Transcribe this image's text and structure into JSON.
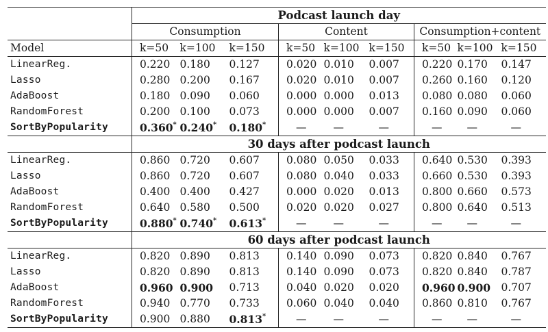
{
  "headers": {
    "model_label": "Model",
    "groups": [
      "Consumption",
      "Content",
      "Consumption+content"
    ],
    "k_labels": [
      "k=50",
      "k=100",
      "k=150"
    ]
  },
  "sections": [
    {
      "title": "Podcast launch day",
      "rows": [
        {
          "model": "LinearReg.",
          "values": [
            "0.220",
            "0.180",
            "0.127",
            "0.020",
            "0.010",
            "0.007",
            "0.220",
            "0.170",
            "0.147"
          ]
        },
        {
          "model": "Lasso",
          "values": [
            "0.280",
            "0.200",
            "0.167",
            "0.020",
            "0.010",
            "0.007",
            "0.260",
            "0.160",
            "0.120"
          ]
        },
        {
          "model": "AdaBoost",
          "values": [
            "0.180",
            "0.090",
            "0.060",
            "0.000",
            "0.000",
            "0.013",
            "0.080",
            "0.080",
            "0.060"
          ]
        },
        {
          "model": "RandomForest",
          "values": [
            "0.200",
            "0.100",
            "0.073",
            "0.000",
            "0.000",
            "0.007",
            "0.160",
            "0.090",
            "0.060"
          ]
        },
        {
          "model": "SortByPopularity",
          "values": [
            "0.360*",
            "0.240*",
            "0.180*",
            "—",
            "—",
            "—",
            "—",
            "—",
            "—"
          ]
        }
      ]
    },
    {
      "title": "30 days after podcast launch",
      "rows": [
        {
          "model": "LinearReg.",
          "values": [
            "0.860",
            "0.720",
            "0.607",
            "0.080",
            "0.050",
            "0.033",
            "0.640",
            "0.530",
            "0.393"
          ]
        },
        {
          "model": "Lasso",
          "values": [
            "0.860",
            "0.720",
            "0.607",
            "0.080",
            "0.040",
            "0.033",
            "0.660",
            "0.530",
            "0.393"
          ]
        },
        {
          "model": "AdaBoost",
          "values": [
            "0.400",
            "0.400",
            "0.427",
            "0.000",
            "0.020",
            "0.013",
            "0.800",
            "0.660",
            "0.573"
          ]
        },
        {
          "model": "RandomForest",
          "values": [
            "0.640",
            "0.580",
            "0.500",
            "0.020",
            "0.020",
            "0.027",
            "0.800",
            "0.640",
            "0.513"
          ]
        },
        {
          "model": "SortByPopularity",
          "values": [
            "0.880*",
            "0.740*",
            "0.613*",
            "—",
            "—",
            "—",
            "—",
            "—",
            "—"
          ]
        }
      ]
    },
    {
      "title": "60 days after podcast launch",
      "rows": [
        {
          "model": "LinearReg.",
          "values": [
            "0.820",
            "0.890",
            "0.813",
            "0.140",
            "0.090",
            "0.073",
            "0.820",
            "0.840",
            "0.767"
          ]
        },
        {
          "model": "Lasso",
          "values": [
            "0.820",
            "0.890",
            "0.813",
            "0.140",
            "0.090",
            "0.073",
            "0.820",
            "0.840",
            "0.787"
          ]
        },
        {
          "model": "AdaBoost",
          "values": [
            "0.960",
            "0.900",
            "0.713",
            "0.040",
            "0.020",
            "0.020",
            "0.960",
            "0.900",
            "0.707"
          ]
        },
        {
          "model": "RandomForest",
          "values": [
            "0.940",
            "0.770",
            "0.733",
            "0.060",
            "0.040",
            "0.040",
            "0.860",
            "0.810",
            "0.767"
          ]
        },
        {
          "model": "SortByPopularity",
          "values": [
            "0.900",
            "0.880",
            "0.813*",
            "—",
            "—",
            "—",
            "—",
            "—",
            "—"
          ]
        }
      ]
    }
  ],
  "bold_cells": [
    {
      "section": 0,
      "row": 4,
      "cols": [
        0,
        1,
        2
      ]
    },
    {
      "section": 1,
      "row": 4,
      "cols": [
        0,
        1,
        2
      ]
    },
    {
      "section": 2,
      "row": 2,
      "cols": [
        0,
        1,
        6,
        7
      ]
    },
    {
      "section": 2,
      "row": 4,
      "cols": [
        2
      ]
    }
  ]
}
